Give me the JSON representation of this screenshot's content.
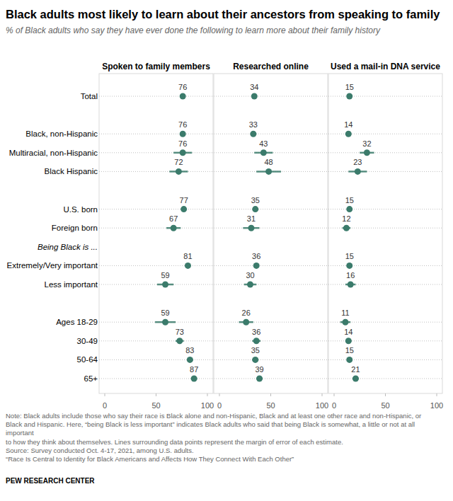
{
  "header": {
    "title": "Black adults most likely to learn about their ancestors from speaking to family",
    "subtitle": "% of Black adults who say they have ever done the following to learn more about their family history"
  },
  "chart_data": {
    "type": "dot",
    "orientation": "horizontal",
    "data_labels": true,
    "color": "#3b7b6b",
    "categories": [
      "Total",
      "Black, non-Hispanic",
      "Multiracial, non-Hispanic",
      "Black Hispanic",
      "U.S. born",
      "Foreign born",
      "Being Black is ...",
      "Extremely/Very important",
      "Less important",
      "Ages 18-29",
      "30-49",
      "50-64",
      "65+"
    ],
    "xlim": [
      0,
      100
    ],
    "xticks": [
      0,
      50,
      100
    ],
    "series": [
      {
        "name": "Spoken to family members",
        "values": [
          76,
          76,
          76,
          72,
          77,
          67,
          null,
          81,
          59,
          59,
          73,
          83,
          87
        ],
        "errors": [
          2,
          2,
          9,
          9,
          2,
          7,
          null,
          2,
          8,
          10,
          4,
          3,
          3
        ]
      },
      {
        "name": "Researched online",
        "values": [
          34,
          33,
          43,
          48,
          35,
          31,
          null,
          36,
          30,
          26,
          36,
          35,
          39
        ],
        "errors": [
          2,
          2,
          9,
          12,
          2,
          8,
          null,
          2,
          6,
          7,
          4,
          3,
          3
        ]
      },
      {
        "name": "Used a mail-in DNA service",
        "values": [
          15,
          14,
          32,
          23,
          15,
          12,
          null,
          15,
          16,
          11,
          14,
          15,
          21
        ],
        "errors": [
          1,
          1,
          7,
          9,
          1,
          4,
          null,
          1,
          5,
          5,
          3,
          2,
          3
        ]
      }
    ]
  },
  "footer": {
    "note": [
      "Note: Black adults include those who say their race is Black alone and non-Hispanic, Black and at least one other race and non-Hispanic, or",
      "Black and Hispanic. Here, “being Black is less important” indicates Black adults who said that being Black is somewhat, a little or not at all",
      "important",
      "to how they think about themselves. Lines surrounding data points represent the margin of error of each estimate.",
      "Source: Survey conducted Oct. 4-17, 2021, among U.S. adults.",
      "“Race Is Central to Identity for Black Americans and Affects How They Connect With Each Other”"
    ],
    "credit": "PEW RESEARCH CENTER"
  }
}
